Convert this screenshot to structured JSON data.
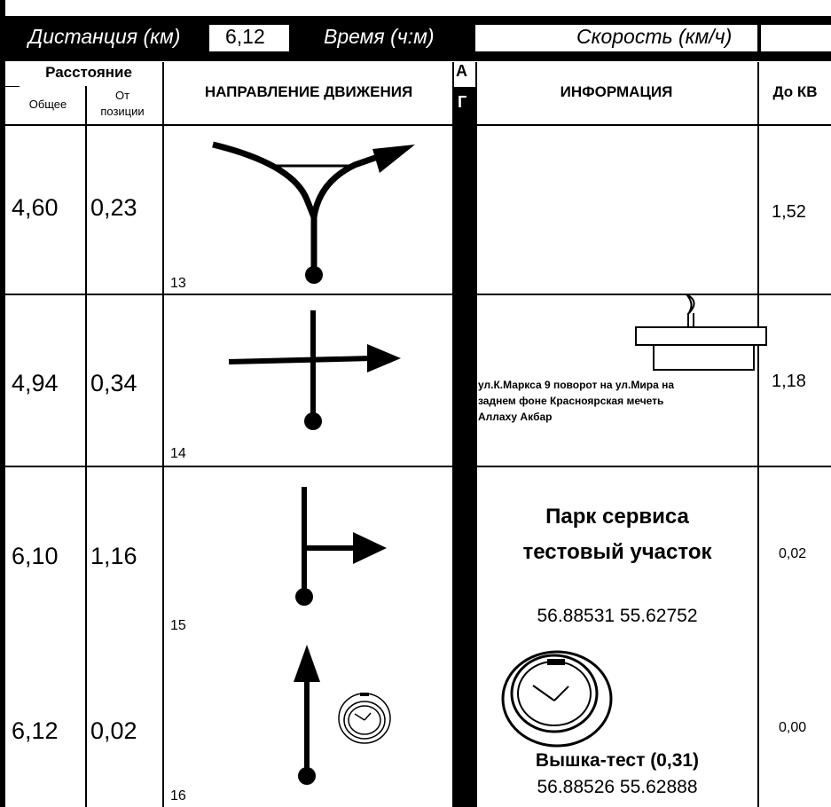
{
  "header": {
    "distance_label": "Дистанция (км)",
    "distance_value": "6,12",
    "time_label": "Время (ч:м)",
    "time_value": "",
    "speed_label": "Скорость (км/ч)",
    "speed_value": ""
  },
  "columns": {
    "distance": "Расстояние",
    "total": "Общее",
    "from_position_line1": "От",
    "from_position_line2": "позиции",
    "direction": "НАПРАВЛЕНИЕ ДВИЖЕНИЯ",
    "ag_top": "А",
    "ag_bottom": "Г",
    "info": "ИНФОРМАЦИЯ",
    "to_kv": "До КВ"
  },
  "rows": [
    {
      "total": "4,60",
      "from": "0,23",
      "num": "13",
      "info": "",
      "to_kv": "1,52"
    },
    {
      "total": "4,94",
      "from": "0,34",
      "num": "14",
      "info_lines": [
        "ул.К.Маркса 9 поворот на ул.Мира на",
        "заднем фоне Красноярская мечеть",
        "Аллаху Акбар"
      ],
      "to_kv": "1,18"
    },
    {
      "total": "6,10",
      "from": "1,16",
      "num": "15",
      "info_title_1": "Парк сервиса",
      "info_title_2": "тестовый участок",
      "info_coords": "56.88531 55.62752",
      "to_kv": "0,02"
    },
    {
      "total": "6,12",
      "from": "0,02",
      "num": "16",
      "info_title": "Вышка-тест (0,31)",
      "info_coords": "56.88526 55.62888",
      "to_kv": "0,00"
    }
  ]
}
